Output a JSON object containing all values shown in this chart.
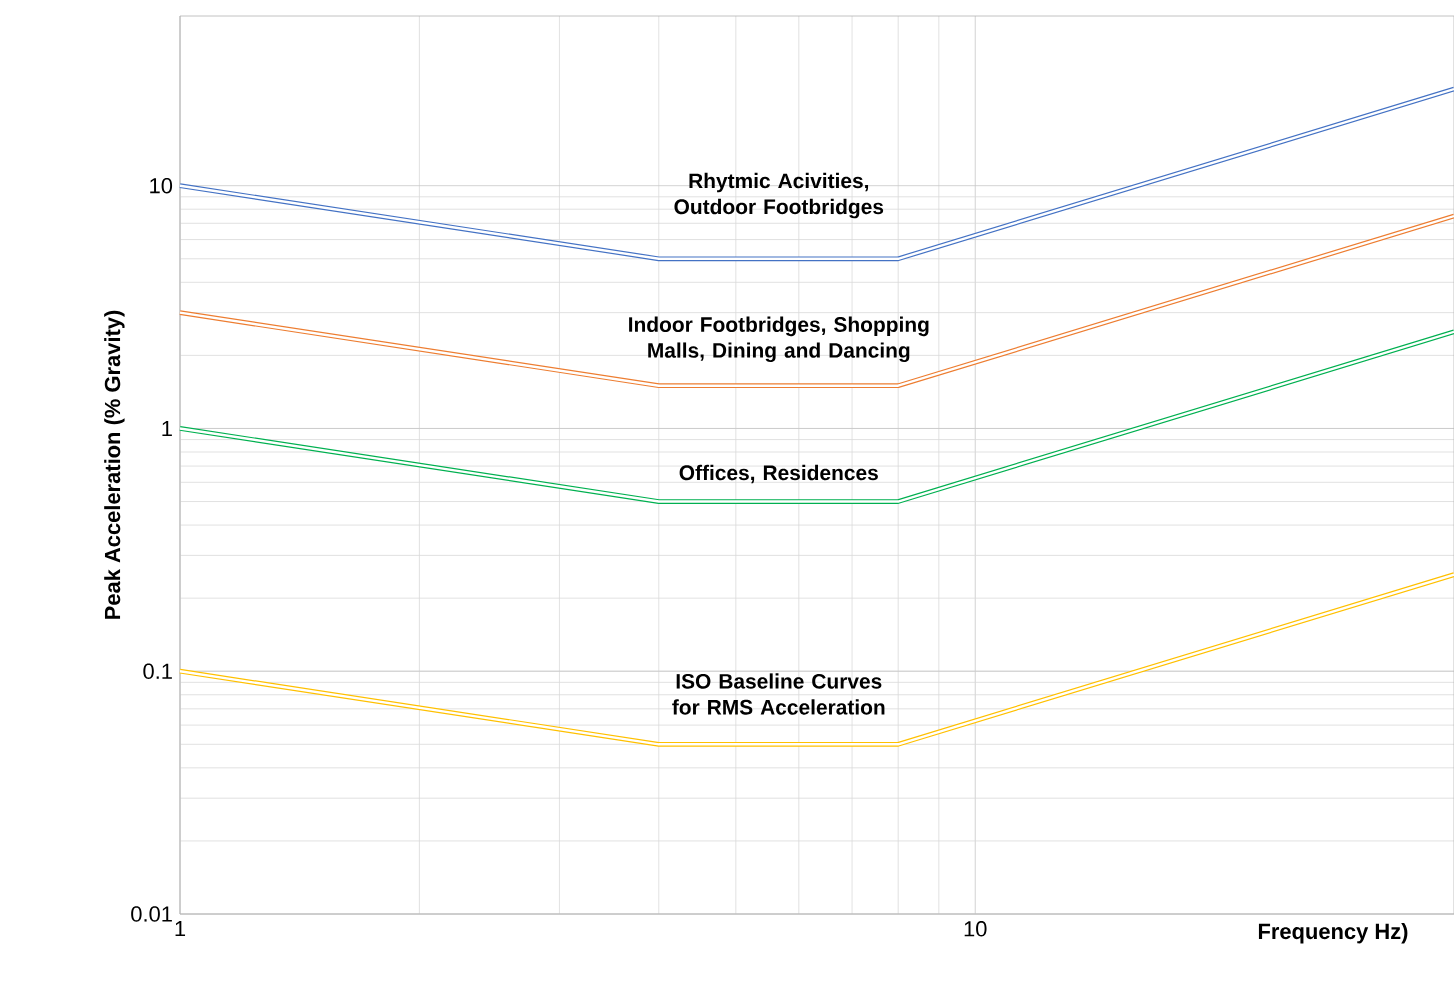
{
  "chart_data": {
    "type": "line",
    "xlabel": "Frequency Hz)",
    "ylabel": "Peak Acceleration (% Gravity)",
    "log": "xy",
    "grid": true,
    "line_style": "solid",
    "marker": "none",
    "xlim": [
      1,
      40
    ],
    "ylim": [
      0.01,
      50
    ],
    "xticks": [
      1,
      10
    ],
    "yticks": [
      0.01,
      0.1,
      1,
      10
    ],
    "series": [
      {
        "color": "#4472c4",
        "x": [
          1,
          4,
          8,
          40
        ],
        "values": [
          10,
          5,
          5,
          25
        ]
      },
      {
        "color": "#ed7d31",
        "x": [
          1,
          4,
          8,
          40
        ],
        "values": [
          3,
          1.5,
          1.5,
          7.5
        ]
      },
      {
        "color": "#00b050",
        "x": [
          1,
          4,
          8,
          40
        ],
        "values": [
          1,
          0.5,
          0.5,
          2.5
        ]
      },
      {
        "color": "#ffc000",
        "x": [
          1,
          4,
          8,
          40
        ],
        "values": [
          0.1,
          0.05,
          0.05,
          0.25
        ]
      }
    ],
    "annotations": [
      "Rhytmic Acivities, Outdoor Footbridges",
      "Indoor Footbridges, Shopping Malls, Dining and Dancing",
      "Offices, Residences",
      "ISO Baseline Curves for RMS Acceleration"
    ]
  }
}
